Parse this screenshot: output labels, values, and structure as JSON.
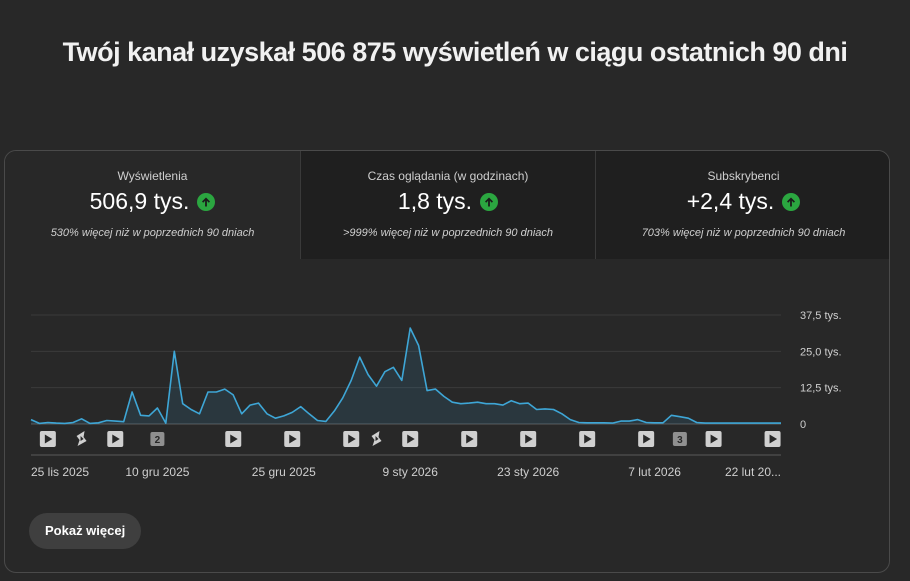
{
  "headline": "Twój kanał uzyskał 506 875 wyświetleń w ciągu ostatnich 90 dni",
  "tabs": [
    {
      "label": "Wyświetlenia",
      "value": "506,9 tys.",
      "sub": "530% więcej niż w poprzednich 90 dniach",
      "trend_icon": "arrow-up-icon"
    },
    {
      "label": "Czas oglądania (w godzinach)",
      "value": "1,8 tys.",
      "sub": ">999% więcej niż w poprzednich 90 dniach",
      "trend_icon": "arrow-up-icon"
    },
    {
      "label": "Subskrybenci",
      "value": "+2,4 tys.",
      "sub": "703% więcej niż w poprzednich 90 dniach",
      "trend_icon": "arrow-up-icon"
    }
  ],
  "chart_data": {
    "type": "area",
    "ylim": [
      0,
      37500
    ],
    "y_ticks": [
      {
        "value": 37500,
        "label": "37,5 tys."
      },
      {
        "value": 25000,
        "label": "25,0 tys."
      },
      {
        "value": 12500,
        "label": "12,5 tys."
      },
      {
        "value": 0,
        "label": "0"
      }
    ],
    "x_ticks": [
      {
        "index": 0,
        "label": "25 lis 2025"
      },
      {
        "index": 15,
        "label": "10 gru 2025"
      },
      {
        "index": 30,
        "label": "25 gru 2025"
      },
      {
        "index": 45,
        "label": "9 sty 2026"
      },
      {
        "index": 59,
        "label": "23 sty 2026"
      },
      {
        "index": 74,
        "label": "7 lut 2026"
      },
      {
        "index": 89,
        "label": "22 lut 20..."
      }
    ],
    "values": [
      1500,
      200,
      500,
      300,
      200,
      500,
      1800,
      200,
      400,
      1200,
      1000,
      800,
      11000,
      3000,
      2800,
      5500,
      300,
      25000,
      7000,
      5000,
      3500,
      11000,
      11000,
      12000,
      10000,
      3500,
      6500,
      7200,
      3500,
      2000,
      2800,
      4000,
      6000,
      3500,
      1200,
      900,
      4500,
      9000,
      15000,
      23000,
      17000,
      13000,
      18000,
      19500,
      15000,
      33000,
      27000,
      11500,
      12000,
      9500,
      7500,
      7000,
      7200,
      7500,
      7000,
      7000,
      6500,
      8000,
      7000,
      7200,
      5000,
      5200,
      5000,
      3500,
      1500,
      500,
      400,
      400,
      400,
      300,
      1000,
      1000,
      1500,
      500,
      400,
      400,
      3000,
      2500,
      2000,
      500,
      300,
      300,
      300,
      300,
      300,
      300,
      300,
      300,
      300,
      300
    ],
    "markers": [
      {
        "index": 2,
        "kind": "video",
        "icon": "play-icon"
      },
      {
        "index": 6,
        "kind": "short",
        "icon": "shorts-icon"
      },
      {
        "index": 10,
        "kind": "video",
        "icon": "play-icon"
      },
      {
        "index": 15,
        "kind": "count",
        "label": "2"
      },
      {
        "index": 24,
        "kind": "video",
        "icon": "play-icon"
      },
      {
        "index": 31,
        "kind": "video",
        "icon": "play-icon"
      },
      {
        "index": 38,
        "kind": "video",
        "icon": "play-icon"
      },
      {
        "index": 41,
        "kind": "short",
        "icon": "shorts-icon"
      },
      {
        "index": 45,
        "kind": "video",
        "icon": "play-icon"
      },
      {
        "index": 52,
        "kind": "video",
        "icon": "play-icon"
      },
      {
        "index": 59,
        "kind": "video",
        "icon": "play-icon"
      },
      {
        "index": 66,
        "kind": "video",
        "icon": "play-icon"
      },
      {
        "index": 73,
        "kind": "video",
        "icon": "play-icon"
      },
      {
        "index": 77,
        "kind": "count",
        "label": "3"
      },
      {
        "index": 81,
        "kind": "video",
        "icon": "play-icon"
      },
      {
        "index": 88,
        "kind": "video",
        "icon": "play-icon"
      }
    ],
    "line_color": "#3ea6d6",
    "grid": true
  },
  "show_more_label": "Pokaż więcej",
  "colors": {
    "accent_up": "#2ba640",
    "line": "#3ea6d6"
  }
}
